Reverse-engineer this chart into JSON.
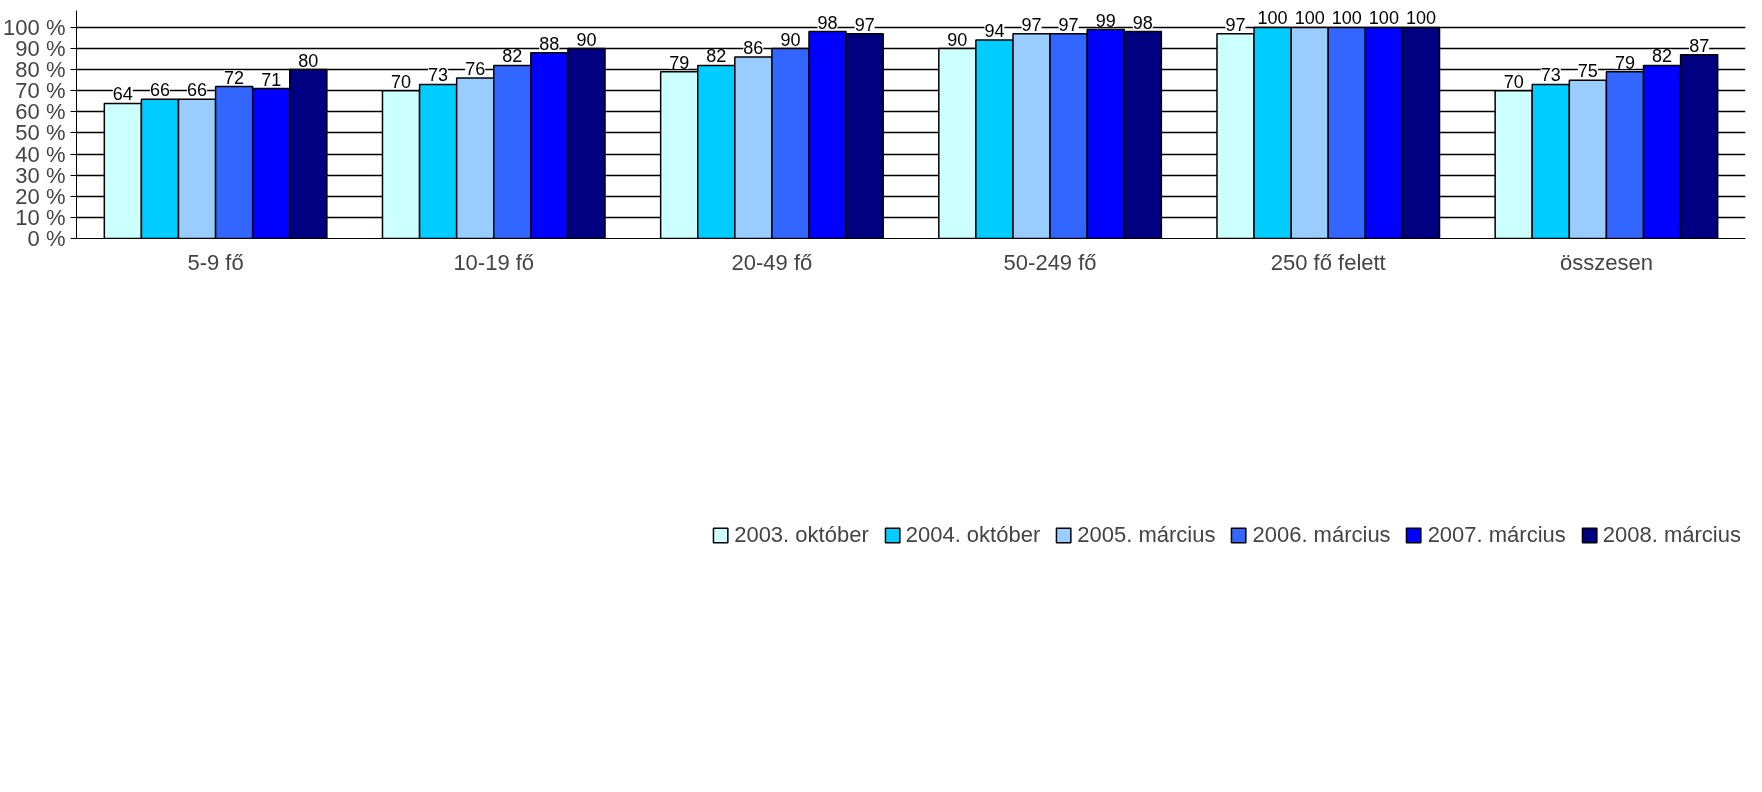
{
  "chart_data": {
    "type": "bar",
    "categories": [
      "5-9 fő",
      "10-19 fő",
      "20-49 fő",
      "50-249 fő",
      "250 fő felett",
      "összesen"
    ],
    "series": [
      {
        "name": "2003. október",
        "color": "#ccffff",
        "values": [
          64,
          70,
          79,
          90,
          97,
          70
        ]
      },
      {
        "name": "2004. október",
        "color": "#00ccff",
        "values": [
          66,
          73,
          82,
          94,
          100,
          73
        ]
      },
      {
        "name": "2005. március",
        "color": "#99ccff",
        "values": [
          66,
          76,
          86,
          97,
          100,
          75
        ]
      },
      {
        "name": "2006. március",
        "color": "#3366ff",
        "values": [
          72,
          82,
          90,
          97,
          100,
          79
        ]
      },
      {
        "name": "2007. március",
        "color": "#0000ff",
        "values": [
          71,
          88,
          98,
          99,
          100,
          82
        ]
      },
      {
        "name": "2008. március",
        "color": "#000080",
        "values": [
          80,
          90,
          97,
          98,
          100,
          87
        ]
      }
    ],
    "ylim": [
      0,
      100
    ],
    "yticks": [
      {
        "value": 0,
        "label": "0 %"
      },
      {
        "value": 10,
        "label": "10 %"
      },
      {
        "value": 20,
        "label": "20 %"
      },
      {
        "value": 30,
        "label": "30 %"
      },
      {
        "value": 40,
        "label": "40 %"
      },
      {
        "value": 50,
        "label": "50 %"
      },
      {
        "value": 60,
        "label": "60 %"
      },
      {
        "value": 70,
        "label": "70 %"
      },
      {
        "value": 80,
        "label": "80 %"
      },
      {
        "value": 90,
        "label": "90 %"
      },
      {
        "value": 100,
        "label": "100 %"
      }
    ],
    "grid": "y",
    "legend": "bottom",
    "data_labels": true
  }
}
